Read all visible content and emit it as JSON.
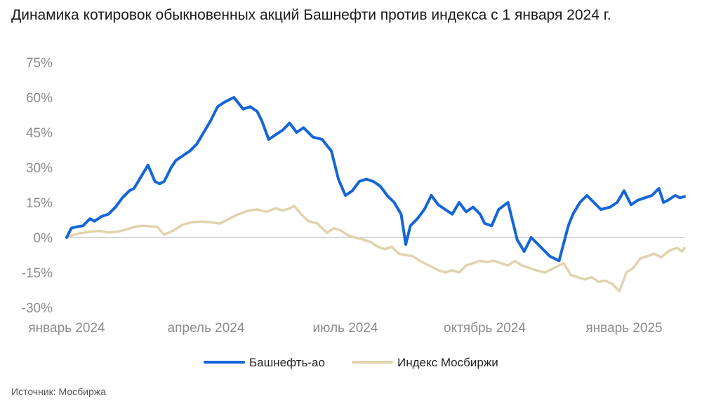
{
  "source": "Источник: Мосбиржа",
  "chart_data": {
    "type": "line",
    "title": "Динамика котировок обыкновенных акций Башнефти против индекса с 1 января 2024 г.",
    "xlabel": "",
    "ylabel": "",
    "ylim": [
      -30,
      75
    ],
    "yticks": [
      75,
      60,
      45,
      30,
      15,
      0,
      -15,
      -30
    ],
    "ytick_labels": [
      "75%",
      "60%",
      "45%",
      "30%",
      "15%",
      "0%",
      "-15%",
      "-30%"
    ],
    "x_range": [
      0,
      13.3
    ],
    "xtick_positions": [
      0,
      3,
      6,
      9,
      12
    ],
    "xtick_labels": [
      "январь 2024",
      "апрель 2024",
      "июль 2024",
      "октябрь 2024",
      "январь 2025"
    ],
    "legend_position": "bottom",
    "series": [
      {
        "name": "Башнефть-ао",
        "color": "#1565d8",
        "x": [
          0,
          0.1,
          0.2,
          0.35,
          0.5,
          0.6,
          0.75,
          0.9,
          1.05,
          1.2,
          1.35,
          1.45,
          1.6,
          1.75,
          1.9,
          2.0,
          2.1,
          2.25,
          2.35,
          2.5,
          2.65,
          2.8,
          2.95,
          3.1,
          3.25,
          3.4,
          3.6,
          3.8,
          3.95,
          4.1,
          4.2,
          4.35,
          4.5,
          4.65,
          4.8,
          4.95,
          5.1,
          5.3,
          5.5,
          5.7,
          5.85,
          6.0,
          6.15,
          6.3,
          6.45,
          6.6,
          6.75,
          6.9,
          7.05,
          7.2,
          7.3,
          7.4,
          7.55,
          7.7,
          7.85,
          8.0,
          8.15,
          8.3,
          8.45,
          8.6,
          8.75,
          8.9,
          9.0,
          9.15,
          9.3,
          9.5,
          9.7,
          9.85,
          10.0,
          10.2,
          10.4,
          10.6,
          10.8,
          10.9,
          11.05,
          11.2,
          11.35,
          11.5,
          11.7,
          11.85,
          12.0,
          12.15,
          12.3,
          12.45,
          12.6,
          12.75,
          12.85,
          12.95,
          13.1,
          13.2,
          13.3
        ],
        "values": [
          0,
          4,
          4.5,
          5,
          8,
          7,
          9,
          10,
          13,
          17,
          20,
          21,
          26,
          31,
          24,
          23,
          24,
          30,
          33,
          35,
          37,
          40,
          45,
          50,
          56,
          58,
          60,
          55,
          56,
          54,
          50,
          42,
          44,
          46,
          49,
          45,
          47,
          43,
          42,
          37,
          25,
          18,
          20,
          24,
          25,
          24,
          22,
          18,
          15,
          10,
          -3,
          5,
          8,
          12,
          18,
          14,
          12,
          10,
          15,
          11,
          13,
          10,
          6,
          5,
          12,
          15,
          -1,
          -6,
          0,
          -4,
          -8,
          -10,
          5,
          10,
          15,
          18,
          15,
          12,
          13,
          15,
          20,
          14,
          16,
          17,
          18,
          21,
          15,
          16,
          18,
          17,
          17.5
        ]
      },
      {
        "name": "Индекс Мосбиржи",
        "color": "#e0d3ad",
        "x": [
          0,
          0.2,
          0.35,
          0.5,
          0.7,
          0.9,
          1.1,
          1.3,
          1.45,
          1.6,
          1.8,
          1.95,
          2.1,
          2.3,
          2.5,
          2.7,
          2.9,
          3.1,
          3.3,
          3.5,
          3.7,
          3.9,
          4.1,
          4.3,
          4.5,
          4.65,
          4.8,
          4.9,
          5.05,
          5.2,
          5.4,
          5.6,
          5.75,
          5.9,
          6.05,
          6.2,
          6.4,
          6.55,
          6.7,
          6.85,
          7.0,
          7.15,
          7.3,
          7.45,
          7.6,
          7.8,
          8.0,
          8.15,
          8.3,
          8.45,
          8.6,
          8.75,
          8.9,
          9.05,
          9.2,
          9.35,
          9.5,
          9.65,
          9.8,
          9.95,
          10.1,
          10.3,
          10.5,
          10.7,
          10.85,
          11.0,
          11.15,
          11.3,
          11.45,
          11.6,
          11.75,
          11.9,
          12.05,
          12.2,
          12.35,
          12.5,
          12.65,
          12.8,
          12.95,
          13.05,
          13.15,
          13.25,
          13.3
        ],
        "values": [
          0,
          1.5,
          2,
          2.5,
          2.8,
          2.2,
          2.5,
          3.5,
          4.5,
          5,
          4.8,
          4.5,
          1.2,
          3,
          5.5,
          6.5,
          6.8,
          6.5,
          6,
          8,
          10,
          11.5,
          12,
          11,
          12.5,
          11.5,
          12.5,
          13.5,
          10,
          7,
          6,
          2,
          4,
          3,
          1,
          0,
          -1,
          -2,
          -4,
          -5,
          -4,
          -7,
          -7.5,
          -8,
          -10,
          -12,
          -14,
          -15,
          -14,
          -15,
          -12,
          -11,
          -10,
          -10.5,
          -10,
          -11,
          -12,
          -10,
          -12,
          -13,
          -14,
          -15,
          -13,
          -11,
          -16,
          -17,
          -18,
          -17,
          -19,
          -18.5,
          -20,
          -23,
          -15,
          -13,
          -9,
          -8,
          -7,
          -8.5,
          -6,
          -5,
          -4.5,
          -6,
          -4.5
        ]
      }
    ]
  }
}
